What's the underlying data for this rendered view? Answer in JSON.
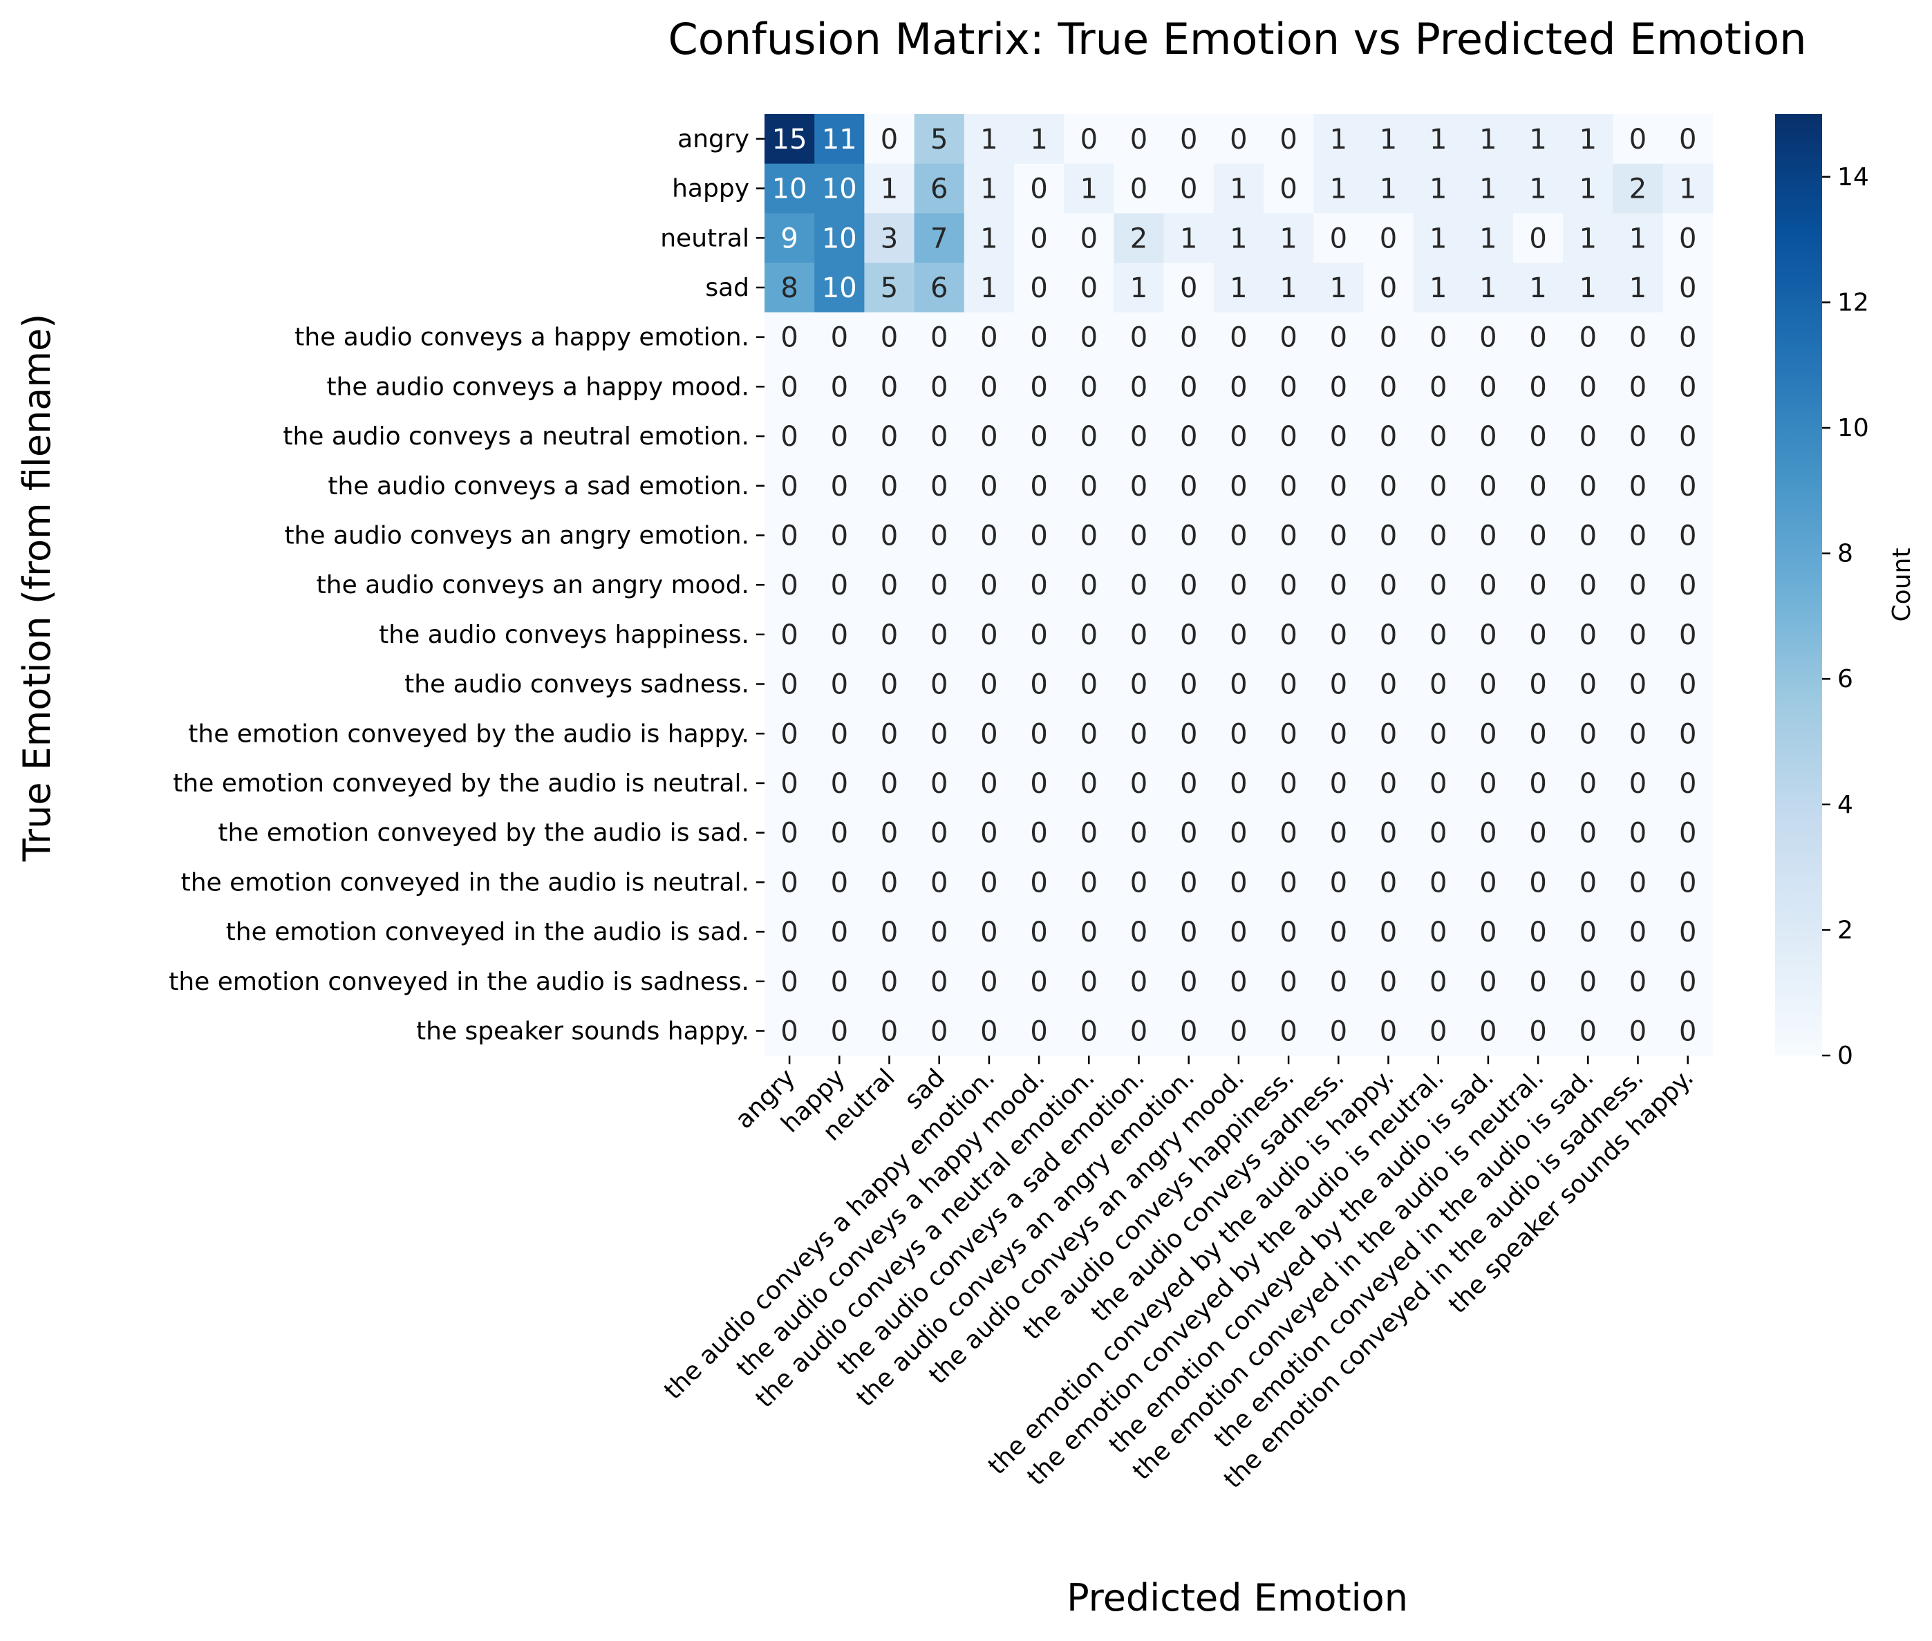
{
  "chart_data": {
    "type": "heatmap",
    "title": "Confusion Matrix: True Emotion vs Predicted Emotion",
    "xlabel": "Predicted Emotion",
    "ylabel": "True Emotion (from filename)",
    "colorbar_label": "Count",
    "colormap": "Blues",
    "color_range": [
      0,
      15
    ],
    "colorbar_ticks": [
      0,
      2,
      4,
      6,
      8,
      10,
      12,
      14
    ],
    "row_labels": [
      "angry",
      "happy",
      "neutral",
      "sad",
      "the audio conveys a happy emotion.",
      "the audio conveys a happy mood.",
      "the audio conveys a neutral emotion.",
      "the audio conveys a sad emotion.",
      "the audio conveys an angry emotion.",
      "the audio conveys an angry mood.",
      "the audio conveys happiness.",
      "the audio conveys sadness.",
      "the emotion conveyed by the audio is happy.",
      "the emotion conveyed by the audio is neutral.",
      "the emotion conveyed by the audio is sad.",
      "the emotion conveyed in the audio is neutral.",
      "the emotion conveyed in the audio is sad.",
      "the emotion conveyed in the audio is sadness.",
      "the speaker sounds happy."
    ],
    "column_labels": [
      "angry",
      "happy",
      "neutral",
      "sad",
      "the audio conveys a happy emotion.",
      "the audio conveys a happy mood.",
      "the audio conveys a neutral emotion.",
      "the audio conveys a sad emotion.",
      "the audio conveys an angry emotion.",
      "the audio conveys an angry mood.",
      "the audio conveys happiness.",
      "the audio conveys sadness.",
      "the emotion conveyed by the audio is happy.",
      "the emotion conveyed by the audio is neutral.",
      "the emotion conveyed by the audio is sad.",
      "the emotion conveyed in the audio is neutral.",
      "the emotion conveyed in the audio is sad.",
      "the emotion conveyed in the audio is sadness.",
      "the speaker sounds happy."
    ],
    "values": [
      [
        15,
        11,
        0,
        5,
        1,
        1,
        0,
        0,
        0,
        0,
        0,
        1,
        1,
        1,
        1,
        1,
        1,
        0,
        0
      ],
      [
        10,
        10,
        1,
        6,
        1,
        0,
        1,
        0,
        0,
        1,
        0,
        1,
        1,
        1,
        1,
        1,
        1,
        2,
        1
      ],
      [
        9,
        10,
        3,
        7,
        1,
        0,
        0,
        2,
        1,
        1,
        1,
        0,
        0,
        1,
        1,
        0,
        1,
        1,
        0
      ],
      [
        8,
        10,
        5,
        6,
        1,
        0,
        0,
        1,
        0,
        1,
        1,
        1,
        0,
        1,
        1,
        1,
        1,
        1,
        0
      ],
      [
        0,
        0,
        0,
        0,
        0,
        0,
        0,
        0,
        0,
        0,
        0,
        0,
        0,
        0,
        0,
        0,
        0,
        0,
        0
      ],
      [
        0,
        0,
        0,
        0,
        0,
        0,
        0,
        0,
        0,
        0,
        0,
        0,
        0,
        0,
        0,
        0,
        0,
        0,
        0
      ],
      [
        0,
        0,
        0,
        0,
        0,
        0,
        0,
        0,
        0,
        0,
        0,
        0,
        0,
        0,
        0,
        0,
        0,
        0,
        0
      ],
      [
        0,
        0,
        0,
        0,
        0,
        0,
        0,
        0,
        0,
        0,
        0,
        0,
        0,
        0,
        0,
        0,
        0,
        0,
        0
      ],
      [
        0,
        0,
        0,
        0,
        0,
        0,
        0,
        0,
        0,
        0,
        0,
        0,
        0,
        0,
        0,
        0,
        0,
        0,
        0
      ],
      [
        0,
        0,
        0,
        0,
        0,
        0,
        0,
        0,
        0,
        0,
        0,
        0,
        0,
        0,
        0,
        0,
        0,
        0,
        0
      ],
      [
        0,
        0,
        0,
        0,
        0,
        0,
        0,
        0,
        0,
        0,
        0,
        0,
        0,
        0,
        0,
        0,
        0,
        0,
        0
      ],
      [
        0,
        0,
        0,
        0,
        0,
        0,
        0,
        0,
        0,
        0,
        0,
        0,
        0,
        0,
        0,
        0,
        0,
        0,
        0
      ],
      [
        0,
        0,
        0,
        0,
        0,
        0,
        0,
        0,
        0,
        0,
        0,
        0,
        0,
        0,
        0,
        0,
        0,
        0,
        0
      ],
      [
        0,
        0,
        0,
        0,
        0,
        0,
        0,
        0,
        0,
        0,
        0,
        0,
        0,
        0,
        0,
        0,
        0,
        0,
        0
      ],
      [
        0,
        0,
        0,
        0,
        0,
        0,
        0,
        0,
        0,
        0,
        0,
        0,
        0,
        0,
        0,
        0,
        0,
        0,
        0
      ],
      [
        0,
        0,
        0,
        0,
        0,
        0,
        0,
        0,
        0,
        0,
        0,
        0,
        0,
        0,
        0,
        0,
        0,
        0,
        0
      ],
      [
        0,
        0,
        0,
        0,
        0,
        0,
        0,
        0,
        0,
        0,
        0,
        0,
        0,
        0,
        0,
        0,
        0,
        0,
        0
      ],
      [
        0,
        0,
        0,
        0,
        0,
        0,
        0,
        0,
        0,
        0,
        0,
        0,
        0,
        0,
        0,
        0,
        0,
        0,
        0
      ],
      [
        0,
        0,
        0,
        0,
        0,
        0,
        0,
        0,
        0,
        0,
        0,
        0,
        0,
        0,
        0,
        0,
        0,
        0,
        0
      ]
    ],
    "annotated": true,
    "grid": false
  }
}
